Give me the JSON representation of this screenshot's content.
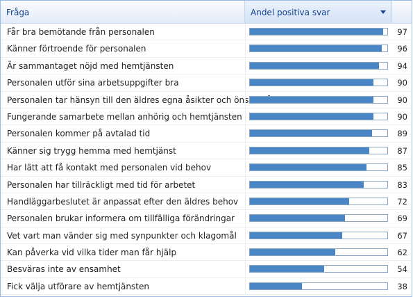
{
  "header": {
    "question_label": "Fråga",
    "answer_label": "Andel positiva svar"
  },
  "rows": [
    {
      "question": "Får bra bemötande från personalen",
      "value": "97",
      "percent": 97
    },
    {
      "question": "Känner förtroende för personalen",
      "value": "96",
      "percent": 96
    },
    {
      "question": "Är sammantaget nöjd med hemtjänsten",
      "value": "94",
      "percent": 94
    },
    {
      "question": "Personalen utför sina arbetsuppgifter bra",
      "value": "90",
      "percent": 90
    },
    {
      "question": "Personalen tar hänsyn till den äldres egna åsikter och önskemål",
      "value": "90",
      "percent": 90
    },
    {
      "question": "Fungerande samarbete mellan anhörig och hemtjänsten",
      "value": "90",
      "percent": 90
    },
    {
      "question": "Personalen kommer på avtalad tid",
      "value": "89",
      "percent": 89
    },
    {
      "question": "Känner sig trygg hemma med hemtjänst",
      "value": "87",
      "percent": 87
    },
    {
      "question": "Har lätt att få kontakt med personalen vid behov",
      "value": "85",
      "percent": 85
    },
    {
      "question": "Personalen har tillräckligt med tid för arbetet",
      "value": "83",
      "percent": 83
    },
    {
      "question": "Handläggarbeslutet är anpassat efter den äldres behov",
      "value": "72",
      "percent": 72
    },
    {
      "question": "Personalen brukar informera om tillfälliga förändringar",
      "value": "69",
      "percent": 69
    },
    {
      "question": "Vet vart man vänder sig med synpunkter och klagomål",
      "value": "67",
      "percent": 67
    },
    {
      "question": "Kan påverka vid vilka tider man får hjälp",
      "value": "62",
      "percent": 62
    },
    {
      "question": "Besväras inte av ensamhet",
      "value": "54",
      "percent": 54
    },
    {
      "question": "Fick välja utförare av hemtjänsten",
      "value": "38",
      "percent": 38
    }
  ],
  "colors": {
    "bar_fill": "#4a86c5",
    "bar_border": "#8aa5c2",
    "header_text": "#15428b"
  },
  "icons": {
    "sort": "sort-dropdown-icon"
  }
}
